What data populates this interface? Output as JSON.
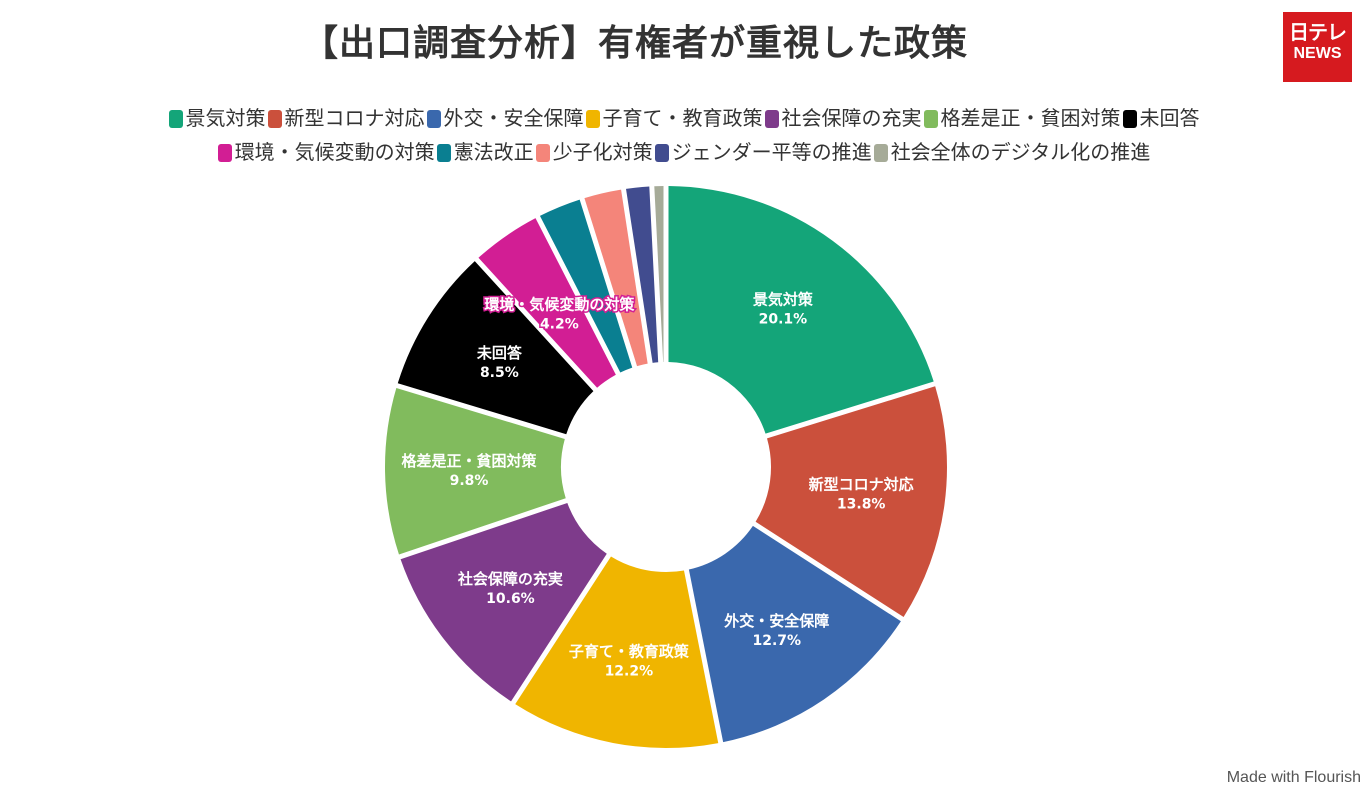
{
  "header": {
    "title": "【出口調査分析】有権者が重視した政策",
    "logo_line1": "日テレ",
    "logo_line2": "NEWS"
  },
  "footer": {
    "credit": "Made with Flourish"
  },
  "chart_data": {
    "type": "pie",
    "title": "【出口調査分析】有権者が重視した政策",
    "unit": "%",
    "legend_position": "top",
    "categories": [
      "景気対策",
      "新型コロナ対応",
      "外交・安全保障",
      "子育て・教育政策",
      "社会保障の充実",
      "格差是正・貧困対策",
      "未回答",
      "環境・気候変動の対策",
      "憲法改正",
      "少子化対策",
      "ジェンダー平等の推進",
      "社会全体のデジタル化の推進"
    ],
    "values": [
      20.1,
      13.8,
      12.7,
      12.2,
      10.6,
      9.8,
      8.5,
      4.2,
      2.7,
      2.4,
      1.6,
      0.8
    ],
    "value_labels": [
      "20.1%",
      "13.8%",
      "12.7%",
      "12.2%",
      "10.6%",
      "9.8%",
      "8.5%",
      "4.2%",
      "",
      "",
      "",
      ""
    ],
    "colors": [
      "#14a579",
      "#cb503c",
      "#3a68ad",
      "#f0b500",
      "#7e3b8b",
      "#81bb5d",
      "#000000",
      "#d21e94",
      "#0a7f91",
      "#f4857a",
      "#414c8f",
      "#a6ab98"
    ],
    "legend_rows": [
      [
        0,
        1,
        2,
        3,
        4,
        5,
        6
      ],
      [
        7,
        8,
        9,
        10,
        11
      ]
    ]
  }
}
